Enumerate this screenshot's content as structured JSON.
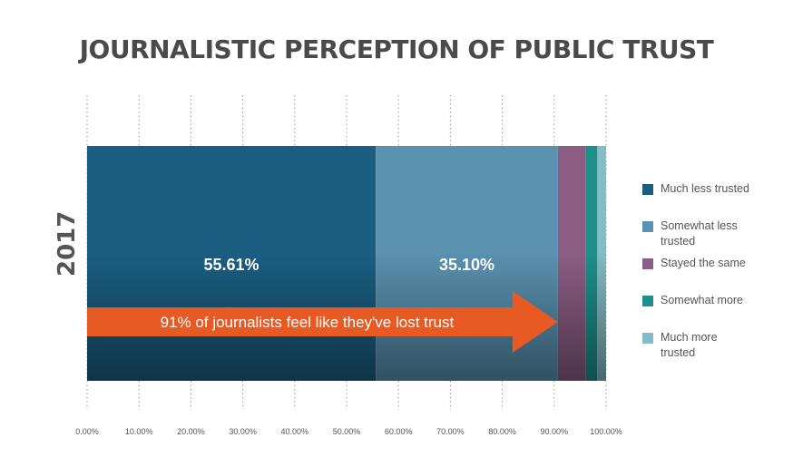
{
  "chart_data": {
    "type": "bar",
    "orientation": "horizontal",
    "stacked": true,
    "title": "JOURNALISTIC PERCEPTION OF PUBLIC TRUST",
    "categories": [
      "2017"
    ],
    "series": [
      {
        "name": "Much less trusted",
        "values": [
          55.61
        ],
        "color": "#1b5e82",
        "label": "55.61%"
      },
      {
        "name": "Somewhat less trusted",
        "values": [
          35.1
        ],
        "color": "#5a92b0",
        "label": "35.10%"
      },
      {
        "name": "Stayed the same",
        "values": [
          5.4
        ],
        "color": "#8c5e86",
        "label": ""
      },
      {
        "name": "Somewhat more",
        "values": [
          2.2
        ],
        "color": "#1e8f8c",
        "label": ""
      },
      {
        "name": "Much more trusted",
        "values": [
          1.69
        ],
        "color": "#82bcc4",
        "label": ""
      }
    ],
    "xlim": [
      0,
      100
    ],
    "xticks": [
      "0.00%",
      "10.00%",
      "20.00%",
      "30.00%",
      "40.00%",
      "50.00%",
      "60.00%",
      "70.00%",
      "80.00%",
      "90.00%",
      "100.00%"
    ],
    "grid": "vertical dotted",
    "legend_position": "right",
    "annotation": {
      "text": "91% of journalists feel like they've lost trust",
      "color": "#e85a24",
      "extends_to": 90.71
    }
  }
}
